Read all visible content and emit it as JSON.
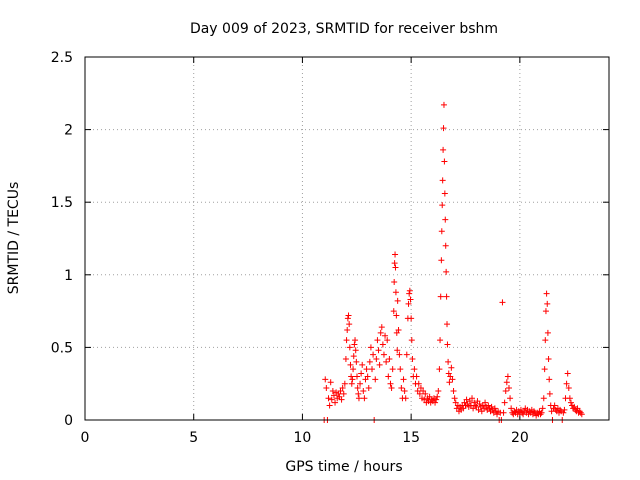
{
  "chart_data": {
    "type": "scatter",
    "title": "Day 009 of 2023, SRMTID for receiver bshm",
    "xlabel": "GPS time / hours",
    "ylabel": "SRMTID / TECUs",
    "xlim": [
      0,
      24.1
    ],
    "ylim": [
      0,
      2.5
    ],
    "xticks": [
      0,
      5,
      10,
      15,
      20
    ],
    "yticks": [
      0,
      0.5,
      1,
      1.5,
      2,
      2.5
    ],
    "xtick_labels": [
      "0",
      "5",
      "10",
      "15",
      "20"
    ],
    "ytick_labels": [
      "0",
      "0.5",
      "1",
      "1.5",
      "2",
      "2.5"
    ],
    "grid": true,
    "marker": "+",
    "series": [
      {
        "name": "SRMTID",
        "color": "#ff0000",
        "points": [
          [
            11.0,
            0.0
          ],
          [
            11.05,
            0.28
          ],
          [
            11.1,
            0.22
          ],
          [
            11.15,
            0.0
          ],
          [
            11.2,
            0.15
          ],
          [
            11.25,
            0.1
          ],
          [
            11.3,
            0.26
          ],
          [
            11.35,
            0.14
          ],
          [
            11.4,
            0.2
          ],
          [
            11.45,
            0.17
          ],
          [
            11.5,
            0.12
          ],
          [
            11.55,
            0.19
          ],
          [
            11.6,
            0.15
          ],
          [
            11.65,
            0.18
          ],
          [
            11.7,
            0.16
          ],
          [
            11.75,
            0.2
          ],
          [
            11.8,
            0.14
          ],
          [
            11.85,
            0.22
          ],
          [
            11.9,
            0.18
          ],
          [
            11.95,
            0.25
          ],
          [
            12.0,
            0.42
          ],
          [
            12.03,
            0.55
          ],
          [
            12.06,
            0.62
          ],
          [
            12.09,
            0.7
          ],
          [
            12.12,
            0.72
          ],
          [
            12.15,
            0.66
          ],
          [
            12.18,
            0.5
          ],
          [
            12.21,
            0.38
          ],
          [
            12.24,
            0.3
          ],
          [
            12.27,
            0.25
          ],
          [
            12.3,
            0.28
          ],
          [
            12.33,
            0.35
          ],
          [
            12.36,
            0.44
          ],
          [
            12.39,
            0.52
          ],
          [
            12.42,
            0.55
          ],
          [
            12.45,
            0.48
          ],
          [
            12.48,
            0.4
          ],
          [
            12.51,
            0.3
          ],
          [
            12.54,
            0.22
          ],
          [
            12.57,
            0.18
          ],
          [
            12.6,
            0.15
          ],
          [
            12.65,
            0.25
          ],
          [
            12.7,
            0.32
          ],
          [
            12.75,
            0.38
          ],
          [
            12.8,
            0.2
          ],
          [
            12.85,
            0.15
          ],
          [
            12.9,
            0.28
          ],
          [
            12.95,
            0.35
          ],
          [
            13.0,
            0.3
          ],
          [
            13.05,
            0.22
          ],
          [
            13.1,
            0.4
          ],
          [
            13.15,
            0.5
          ],
          [
            13.2,
            0.35
          ],
          [
            13.25,
            0.45
          ],
          [
            13.3,
            0.0
          ],
          [
            13.35,
            0.28
          ],
          [
            13.4,
            0.42
          ],
          [
            13.45,
            0.55
          ],
          [
            13.5,
            0.48
          ],
          [
            13.55,
            0.38
          ],
          [
            13.6,
            0.6
          ],
          [
            13.65,
            0.64
          ],
          [
            13.7,
            0.52
          ],
          [
            13.75,
            0.45
          ],
          [
            13.8,
            0.58
          ],
          [
            13.85,
            0.4
          ],
          [
            13.9,
            0.55
          ],
          [
            13.95,
            0.3
          ],
          [
            14.0,
            0.42
          ],
          [
            14.05,
            0.25
          ],
          [
            14.1,
            0.22
          ],
          [
            14.15,
            0.35
          ],
          [
            14.2,
            0.75
          ],
          [
            14.22,
            0.95
          ],
          [
            14.24,
            1.08
          ],
          [
            14.26,
            1.14
          ],
          [
            14.28,
            1.05
          ],
          [
            14.3,
            0.88
          ],
          [
            14.32,
            0.72
          ],
          [
            14.34,
            0.6
          ],
          [
            14.36,
            0.48
          ],
          [
            14.38,
            0.82
          ],
          [
            14.42,
            0.62
          ],
          [
            14.46,
            0.45
          ],
          [
            14.5,
            0.35
          ],
          [
            14.55,
            0.22
          ],
          [
            14.6,
            0.15
          ],
          [
            14.65,
            0.28
          ],
          [
            14.7,
            0.2
          ],
          [
            14.75,
            0.15
          ],
          [
            14.8,
            0.45
          ],
          [
            14.85,
            0.7
          ],
          [
            14.88,
            0.8
          ],
          [
            14.91,
            0.87
          ],
          [
            14.94,
            0.89
          ],
          [
            14.97,
            0.83
          ],
          [
            15.0,
            0.7
          ],
          [
            15.03,
            0.55
          ],
          [
            15.06,
            0.42
          ],
          [
            15.1,
            0.3
          ],
          [
            15.15,
            0.35
          ],
          [
            15.2,
            0.25
          ],
          [
            15.25,
            0.3
          ],
          [
            15.3,
            0.2
          ],
          [
            15.35,
            0.25
          ],
          [
            15.4,
            0.18
          ],
          [
            15.45,
            0.22
          ],
          [
            15.5,
            0.15
          ],
          [
            15.55,
            0.2
          ],
          [
            15.6,
            0.14
          ],
          [
            15.65,
            0.18
          ],
          [
            15.7,
            0.12
          ],
          [
            15.75,
            0.15
          ],
          [
            15.8,
            0.13
          ],
          [
            15.85,
            0.16
          ],
          [
            15.9,
            0.12
          ],
          [
            15.95,
            0.14
          ],
          [
            16.0,
            0.13
          ],
          [
            16.05,
            0.15
          ],
          [
            16.1,
            0.12
          ],
          [
            16.15,
            0.14
          ],
          [
            16.2,
            0.16
          ],
          [
            16.25,
            0.2
          ],
          [
            16.3,
            0.35
          ],
          [
            16.33,
            0.55
          ],
          [
            16.36,
            0.85
          ],
          [
            16.39,
            1.1
          ],
          [
            16.41,
            1.3
          ],
          [
            16.43,
            1.48
          ],
          [
            16.45,
            1.65
          ],
          [
            16.47,
            1.86
          ],
          [
            16.49,
            2.01
          ],
          [
            16.51,
            2.17
          ],
          [
            16.53,
            1.78
          ],
          [
            16.55,
            1.56
          ],
          [
            16.57,
            1.38
          ],
          [
            16.59,
            1.2
          ],
          [
            16.61,
            1.02
          ],
          [
            16.63,
            0.85
          ],
          [
            16.65,
            0.66
          ],
          [
            16.67,
            0.52
          ],
          [
            16.7,
            0.4
          ],
          [
            16.73,
            0.32
          ],
          [
            16.76,
            0.26
          ],
          [
            16.8,
            0.3
          ],
          [
            16.85,
            0.36
          ],
          [
            16.9,
            0.28
          ],
          [
            16.95,
            0.2
          ],
          [
            17.0,
            0.15
          ],
          [
            17.05,
            0.12
          ],
          [
            17.1,
            0.08
          ],
          [
            17.15,
            0.1
          ],
          [
            17.2,
            0.06
          ],
          [
            17.25,
            0.09
          ],
          [
            17.3,
            0.07
          ],
          [
            17.35,
            0.1
          ],
          [
            17.4,
            0.08
          ],
          [
            17.45,
            0.12
          ],
          [
            17.5,
            0.1
          ],
          [
            17.55,
            0.14
          ],
          [
            17.6,
            0.11
          ],
          [
            17.65,
            0.09
          ],
          [
            17.7,
            0.13
          ],
          [
            17.75,
            0.1
          ],
          [
            17.8,
            0.15
          ],
          [
            17.85,
            0.08
          ],
          [
            17.9,
            0.12
          ],
          [
            17.95,
            0.1
          ],
          [
            18.0,
            0.09
          ],
          [
            18.05,
            0.13
          ],
          [
            18.1,
            0.07
          ],
          [
            18.15,
            0.11
          ],
          [
            18.2,
            0.09
          ],
          [
            18.25,
            0.06
          ],
          [
            18.3,
            0.1
          ],
          [
            18.35,
            0.08
          ],
          [
            18.4,
            0.12
          ],
          [
            18.45,
            0.09
          ],
          [
            18.5,
            0.07
          ],
          [
            18.55,
            0.1
          ],
          [
            18.6,
            0.08
          ],
          [
            18.65,
            0.06
          ],
          [
            18.7,
            0.09
          ],
          [
            18.75,
            0.07
          ],
          [
            18.8,
            0.05
          ],
          [
            18.85,
            0.08
          ],
          [
            18.9,
            0.06
          ],
          [
            18.95,
            0.04
          ],
          [
            19.0,
            0.06
          ],
          [
            19.05,
            0.0
          ],
          [
            19.1,
            0.05
          ],
          [
            19.15,
            0.0
          ],
          [
            19.2,
            0.81
          ],
          [
            19.25,
            0.05
          ],
          [
            19.3,
            0.12
          ],
          [
            19.35,
            0.2
          ],
          [
            19.4,
            0.26
          ],
          [
            19.45,
            0.3
          ],
          [
            19.5,
            0.22
          ],
          [
            19.55,
            0.15
          ],
          [
            19.6,
            0.08
          ],
          [
            19.65,
            0.05
          ],
          [
            19.7,
            0.04
          ],
          [
            19.75,
            0.06
          ],
          [
            19.8,
            0.05
          ],
          [
            19.85,
            0.07
          ],
          [
            19.9,
            0.04
          ],
          [
            19.95,
            0.06
          ],
          [
            20.0,
            0.05
          ],
          [
            20.05,
            0.07
          ],
          [
            20.1,
            0.05
          ],
          [
            20.15,
            0.04
          ],
          [
            20.2,
            0.06
          ],
          [
            20.25,
            0.08
          ],
          [
            20.3,
            0.05
          ],
          [
            20.35,
            0.07
          ],
          [
            20.4,
            0.04
          ],
          [
            20.45,
            0.06
          ],
          [
            20.5,
            0.05
          ],
          [
            20.55,
            0.07
          ],
          [
            20.6,
            0.04
          ],
          [
            20.65,
            0.06
          ],
          [
            20.7,
            0.05
          ],
          [
            20.75,
            0.03
          ],
          [
            20.8,
            0.05
          ],
          [
            20.85,
            0.04
          ],
          [
            20.9,
            0.06
          ],
          [
            20.95,
            0.04
          ],
          [
            21.0,
            0.05
          ],
          [
            21.05,
            0.08
          ],
          [
            21.1,
            0.15
          ],
          [
            21.14,
            0.35
          ],
          [
            21.17,
            0.55
          ],
          [
            21.2,
            0.75
          ],
          [
            21.23,
            0.87
          ],
          [
            21.26,
            0.8
          ],
          [
            21.29,
            0.6
          ],
          [
            21.32,
            0.42
          ],
          [
            21.35,
            0.28
          ],
          [
            21.38,
            0.18
          ],
          [
            21.42,
            0.1
          ],
          [
            21.46,
            0.06
          ],
          [
            21.5,
            0.0
          ],
          [
            21.55,
            0.08
          ],
          [
            21.6,
            0.1
          ],
          [
            21.65,
            0.07
          ],
          [
            21.7,
            0.06
          ],
          [
            21.75,
            0.08
          ],
          [
            21.8,
            0.05
          ],
          [
            21.85,
            0.07
          ],
          [
            21.9,
            0.06
          ],
          [
            21.95,
            0.0
          ],
          [
            22.0,
            0.05
          ],
          [
            22.05,
            0.07
          ],
          [
            22.1,
            0.15
          ],
          [
            22.15,
            0.25
          ],
          [
            22.2,
            0.32
          ],
          [
            22.25,
            0.22
          ],
          [
            22.3,
            0.15
          ],
          [
            22.35,
            0.12
          ],
          [
            22.4,
            0.1
          ],
          [
            22.45,
            0.08
          ],
          [
            22.5,
            0.09
          ],
          [
            22.55,
            0.07
          ],
          [
            22.6,
            0.06
          ],
          [
            22.65,
            0.08
          ],
          [
            22.7,
            0.05
          ],
          [
            22.75,
            0.06
          ],
          [
            22.8,
            0.05
          ],
          [
            22.85,
            0.04
          ]
        ]
      }
    ]
  }
}
